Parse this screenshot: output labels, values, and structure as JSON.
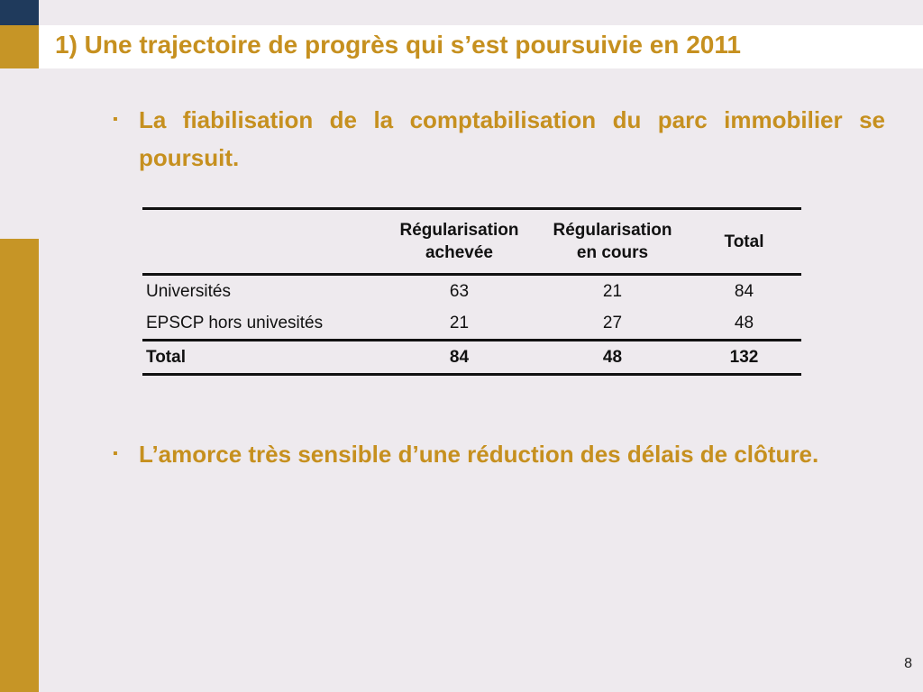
{
  "slide": {
    "title": "1) Une trajectoire de progrès qui s’est poursuivie en 2011",
    "page_number": "8"
  },
  "bullets": [
    {
      "marker": "▪",
      "text": "La fiabilisation de la comptabilisation du parc immobilier se poursuit."
    },
    {
      "marker": "▪",
      "text": "L’amorce très sensible d’une réduction des délais de clôture."
    }
  ],
  "table": {
    "headers": {
      "col1_line1": "Régularisation",
      "col1_line2": "achevée",
      "col2_line1": "Régularisation",
      "col2_line2": "en cours",
      "col3": "Total"
    },
    "rows": [
      {
        "label": "Universités",
        "achevee": "63",
        "en_cours": "21",
        "total": "84"
      },
      {
        "label": "EPSCP hors univesités",
        "achevee": "21",
        "en_cours": "27",
        "total": "48"
      }
    ],
    "total": {
      "label": "Total",
      "achevee": "84",
      "en_cours": "48",
      "total": "132"
    }
  },
  "colors": {
    "accent_gold": "#c69526",
    "title_text": "#c6901f",
    "navy": "#1f3a5c",
    "background": "#eeeaee"
  }
}
